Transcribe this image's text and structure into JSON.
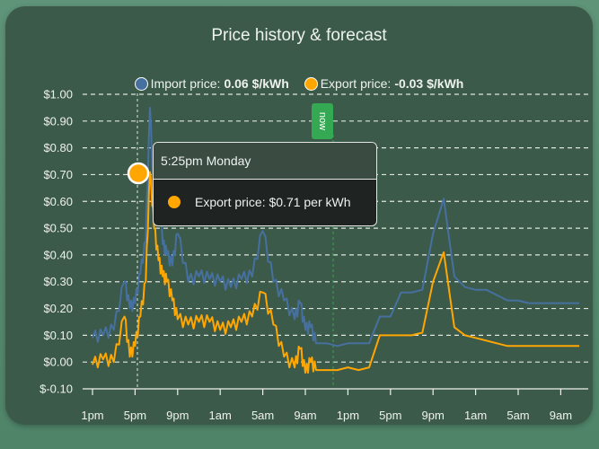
{
  "card": {
    "title": "Price history & forecast",
    "legend": [
      {
        "label": "Import price:",
        "value": "0.06 $/kWh",
        "color": "#4670a0"
      },
      {
        "label": "Export price:",
        "value": "-0.03 $/kWh",
        "color": "#ffa600"
      }
    ],
    "now_marker": "now",
    "tooltip": {
      "time": "5:25pm Monday",
      "text": "Export price: $0.71 per kWh",
      "color": "#ffa600"
    }
  },
  "colors": {
    "import": "#4670a0",
    "export": "#ffa600",
    "card_bg": "#3c5a4a",
    "now": "#34a853"
  },
  "chart_data": {
    "type": "line",
    "title": "Price history & forecast",
    "xlabel": "",
    "ylabel": "",
    "ylim": [
      -0.1,
      1.0
    ],
    "y_ticks": [
      "$1.00",
      "$0.90",
      "$0.80",
      "$0.70",
      "$0.60",
      "$0.50",
      "$0.40",
      "$0.30",
      "$0.20",
      "$0.10",
      "$0.00",
      "$-0.10"
    ],
    "x_ticks": [
      "1pm",
      "5pm",
      "9pm",
      "1am",
      "5am",
      "9am",
      "1pm",
      "5pm",
      "9pm",
      "1am",
      "5am",
      "9am"
    ],
    "grid": true,
    "legend_position": "top",
    "x_hours_from_1pm": [
      0,
      1,
      2,
      3,
      3.5,
      4,
      4.5,
      5,
      5.4,
      5.8,
      6.2,
      6.6,
      7,
      7.5,
      8,
      9,
      10,
      11,
      12,
      13,
      14,
      15,
      16,
      17,
      18,
      19,
      19.5,
      20,
      20.5,
      21,
      22,
      23,
      24,
      25,
      26,
      27,
      28,
      29,
      30,
      31,
      32,
      33,
      34,
      35,
      36,
      37,
      38,
      39,
      40,
      41,
      42,
      43,
      44,
      45,
      46,
      47
    ],
    "series": [
      {
        "name": "Import price",
        "values": [
          0.09,
          0.1,
          0.12,
          0.3,
          0.2,
          0.22,
          0.33,
          0.45,
          0.95,
          0.55,
          0.65,
          0.44,
          0.4,
          0.36,
          0.48,
          0.3,
          0.32,
          0.31,
          0.3,
          0.28,
          0.31,
          0.32,
          0.49,
          0.3,
          0.23,
          0.16,
          0.22,
          0.12,
          0.13,
          0.07,
          0.07,
          0.06,
          0.07,
          0.07,
          0.07,
          0.17,
          0.17,
          0.26,
          0.26,
          0.27,
          0.48,
          0.61,
          0.32,
          0.28,
          0.27,
          0.27,
          0.25,
          0.23,
          0.23,
          0.22,
          0.22,
          0.22,
          0.22,
          0.22,
          0.22,
          0.22
        ]
      },
      {
        "name": "Export price",
        "values": [
          -0.01,
          0.01,
          0.0,
          0.17,
          0.02,
          0.06,
          0.17,
          0.3,
          0.71,
          0.5,
          0.38,
          0.32,
          0.3,
          0.23,
          0.16,
          0.14,
          0.15,
          0.15,
          0.12,
          0.13,
          0.15,
          0.17,
          0.26,
          0.14,
          0.02,
          -0.02,
          0.05,
          -0.04,
          0.0,
          -0.03,
          -0.03,
          -0.03,
          -0.02,
          -0.03,
          -0.02,
          0.1,
          0.1,
          0.1,
          0.1,
          0.11,
          0.3,
          0.41,
          0.13,
          0.1,
          0.09,
          0.08,
          0.07,
          0.06,
          0.06,
          0.06,
          0.06,
          0.06,
          0.06,
          0.06,
          0.06,
          0.06
        ]
      }
    ],
    "annotations": [
      {
        "type": "vertical_line",
        "x": "now",
        "label": "now",
        "color": "#34a853"
      },
      {
        "type": "tooltip",
        "x": "5:25pm Monday",
        "series": "Export price",
        "value": 0.71
      }
    ]
  }
}
